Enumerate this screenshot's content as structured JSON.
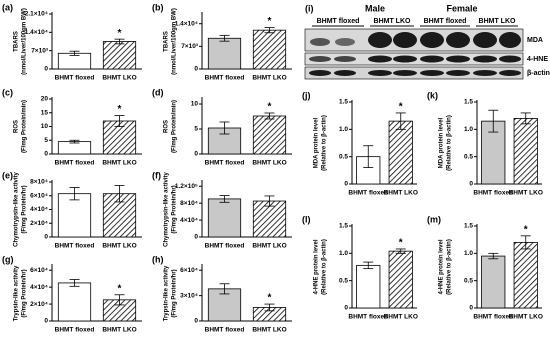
{
  "chart_data": [
    {
      "type": "bar",
      "panel": "(a)",
      "ylabel": [
        "TBARS",
        "(nmol/Liver/100gm BW)"
      ],
      "categories": [
        "BHMT floxed",
        "BHMT LKO"
      ],
      "values": [
        6000,
        10500
      ],
      "errors": [
        800,
        900
      ],
      "significance": [
        null,
        "*"
      ],
      "colors": [
        "#ffffff",
        "#ffffff"
      ],
      "hatch": [
        false,
        true
      ],
      "ylim": [
        0,
        21000
      ],
      "yticks": [
        0,
        {
          "value": 7000,
          "label": "7×10³"
        },
        {
          "value": 14000,
          "label": "1.4×10⁴"
        },
        {
          "value": 21000,
          "label": "2.1×10⁴"
        }
      ]
    },
    {
      "type": "bar",
      "panel": "(b)",
      "ylabel": [
        "TBARS",
        "(nmol/Liver/100gm BW)"
      ],
      "categories": [
        "BHMT floxed",
        "BHMT LKO"
      ],
      "values": [
        9500,
        12000
      ],
      "errors": [
        900,
        800
      ],
      "significance": [
        null,
        "*"
      ],
      "colors": [
        "#c8c8c8",
        "#ffffff"
      ],
      "hatch": [
        false,
        true
      ],
      "ylim": [
        0,
        17000
      ],
      "yticks": [
        0,
        {
          "value": 7000,
          "label": "7×10³"
        },
        {
          "value": 14000,
          "label": "1.4×10⁴"
        }
      ]
    },
    {
      "type": "bar",
      "panel": "(c)",
      "ylabel": [
        "ROS",
        "(F/mg Protein/min)"
      ],
      "categories": [
        "BHMT floxed",
        "BHMT LKO"
      ],
      "values": [
        4.5,
        12
      ],
      "errors": [
        0.5,
        2
      ],
      "significance": [
        null,
        "*"
      ],
      "colors": [
        "#ffffff",
        "#ffffff"
      ],
      "hatch": [
        false,
        true
      ],
      "ylim": [
        0,
        20
      ],
      "yticks": [
        0,
        5,
        10,
        15,
        20
      ]
    },
    {
      "type": "bar",
      "panel": "(d)",
      "ylabel": [
        "ROS",
        "(F/mg Protein/min)"
      ],
      "categories": [
        "BHMT floxed",
        "BHMT LKO"
      ],
      "values": [
        5.2,
        7.6
      ],
      "errors": [
        1.2,
        0.6
      ],
      "significance": [
        null,
        "*"
      ],
      "colors": [
        "#c8c8c8",
        "#ffffff"
      ],
      "hatch": [
        false,
        true
      ],
      "ylim": [
        0,
        11
      ],
      "yticks": [
        0,
        5,
        10
      ]
    },
    {
      "type": "bar",
      "panel": "(e)",
      "ylabel": [
        "Chymotrypsin-like activity",
        "(F/mg Protein/hr)"
      ],
      "categories": [
        "BHMT floxed",
        "BHMT LKO"
      ],
      "values": [
        63000,
        63000
      ],
      "errors": [
        9000,
        12000
      ],
      "significance": [
        null,
        null
      ],
      "colors": [
        "#ffffff",
        "#ffffff"
      ],
      "hatch": [
        false,
        true
      ],
      "ylim": [
        0,
        80000
      ],
      "yticks": [
        0,
        {
          "value": 20000,
          "label": "2×10⁴"
        },
        {
          "value": 40000,
          "label": "4×10⁴"
        },
        {
          "value": 60000,
          "label": "6×10⁴"
        },
        {
          "value": 80000,
          "label": "8×10⁴"
        }
      ]
    },
    {
      "type": "bar",
      "panel": "(f)",
      "ylabel": [
        "Chymotrypsin-like activity",
        "(F/mg Protein/hr)"
      ],
      "categories": [
        "BHMT floxed",
        "BHMT LKO"
      ],
      "values": [
        90000,
        85000
      ],
      "errors": [
        8000,
        12000
      ],
      "significance": [
        null,
        null
      ],
      "colors": [
        "#c8c8c8",
        "#ffffff"
      ],
      "hatch": [
        false,
        true
      ],
      "ylim": [
        0,
        130000
      ],
      "yticks": [
        0,
        {
          "value": 40000,
          "label": "4×10⁴"
        },
        {
          "value": 80000,
          "label": "8×10⁴"
        },
        {
          "value": 120000,
          "label": "1.2×10⁵"
        }
      ]
    },
    {
      "type": "bar",
      "panel": "(g)",
      "ylabel": [
        "Trypsin-like activity",
        "(F/mg Protein/hr)"
      ],
      "categories": [
        "BHMT floxed",
        "BHMT LKO"
      ],
      "values": [
        45000,
        25000
      ],
      "errors": [
        4000,
        6000
      ],
      "significance": [
        null,
        "*"
      ],
      "colors": [
        "#ffffff",
        "#ffffff"
      ],
      "hatch": [
        false,
        true
      ],
      "ylim": [
        0,
        65000
      ],
      "yticks": [
        0,
        {
          "value": 20000,
          "label": "2×10⁴"
        },
        {
          "value": 40000,
          "label": "4×10⁴"
        },
        {
          "value": 60000,
          "label": "6×10⁴"
        }
      ]
    },
    {
      "type": "bar",
      "panel": "(h)",
      "ylabel": [
        "Trypsin-like activity",
        "(F/mg Protein/hr)"
      ],
      "categories": [
        "BHMT floxed",
        "BHMT LKO"
      ],
      "values": [
        38000,
        16000
      ],
      "errors": [
        6000,
        4000
      ],
      "significance": [
        null,
        "*"
      ],
      "colors": [
        "#c8c8c8",
        "#ffffff"
      ],
      "hatch": [
        false,
        true
      ],
      "ylim": [
        0,
        65000
      ],
      "yticks": [
        0,
        {
          "value": 30000,
          "label": "3×10⁴"
        },
        {
          "value": 60000,
          "label": "6×10⁴"
        }
      ]
    },
    {
      "type": "bar",
      "panel": "(j)",
      "ylabel": [
        "MDA protein level",
        "(Relative to β-actin)"
      ],
      "categories": [
        "BHMT floxed",
        "BHMT LKO"
      ],
      "values": [
        0.5,
        1.15
      ],
      "errors": [
        0.2,
        0.15
      ],
      "significance": [
        null,
        "*"
      ],
      "colors": [
        "#ffffff",
        "#ffffff"
      ],
      "hatch": [
        false,
        true
      ],
      "ylim": [
        0,
        1.5
      ],
      "yticks": [
        0,
        0.5,
        {
          "value": 1,
          "label": "1.0"
        },
        1.5
      ]
    },
    {
      "type": "bar",
      "panel": "(k)",
      "ylabel": [
        "MDA protein level",
        "(Relative to β-actin)"
      ],
      "categories": [
        "BHMT floxed",
        "BHMT LKO"
      ],
      "values": [
        1.15,
        1.2
      ],
      "errors": [
        0.2,
        0.1
      ],
      "significance": [
        null,
        null
      ],
      "colors": [
        "#c8c8c8",
        "#ffffff"
      ],
      "hatch": [
        false,
        true
      ],
      "ylim": [
        0,
        1.5
      ],
      "yticks": [
        0,
        0.5,
        {
          "value": 1,
          "label": "1.0"
        },
        1.5
      ]
    },
    {
      "type": "bar",
      "panel": "(l)",
      "ylabel": [
        "4-HNE protein level",
        "(Relative to β-actin)"
      ],
      "categories": [
        "BHMT floxed",
        "BHMT LKO"
      ],
      "values": [
        0.78,
        1.04
      ],
      "errors": [
        0.06,
        0.04
      ],
      "significance": [
        null,
        "*"
      ],
      "colors": [
        "#ffffff",
        "#ffffff"
      ],
      "hatch": [
        false,
        true
      ],
      "ylim": [
        0,
        1.5
      ],
      "yticks": [
        0,
        0.5,
        {
          "value": 1,
          "label": "1.0"
        },
        1.5
      ]
    },
    {
      "type": "bar",
      "panel": "(m)",
      "ylabel": [
        "4-HNE protein level",
        "(Relative to β-actin)"
      ],
      "categories": [
        "BHMT floxed",
        "BHMT LKO"
      ],
      "values": [
        0.95,
        1.2
      ],
      "errors": [
        0.05,
        0.12
      ],
      "significance": [
        null,
        "*"
      ],
      "colors": [
        "#c8c8c8",
        "#ffffff"
      ],
      "hatch": [
        false,
        true
      ],
      "ylim": [
        0,
        1.5
      ],
      "yticks": [
        0,
        0.5,
        {
          "value": 1,
          "label": "1.0"
        },
        1.5
      ]
    }
  ],
  "blot": {
    "panel": "(i)",
    "groups": [
      "Male",
      "Female"
    ],
    "lanes": [
      "BHMT floxed",
      "BHMT LKO",
      "BHMT floxed",
      "BHMT LKO"
    ],
    "bands": [
      "MDA",
      "4-HNE",
      "β-actin"
    ]
  }
}
